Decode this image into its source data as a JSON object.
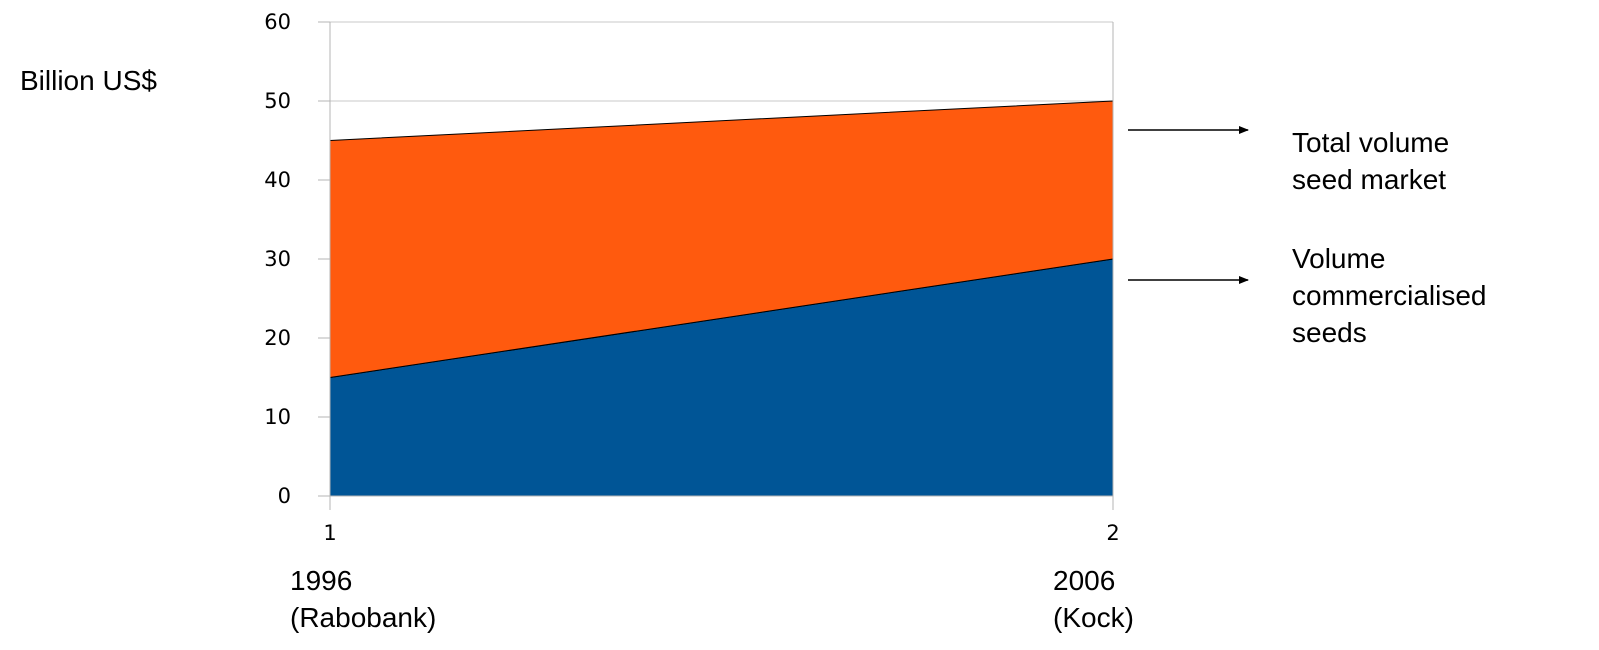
{
  "chart_data": {
    "type": "area",
    "stacked": true,
    "ylabel": "Billion US$",
    "ylim": [
      0,
      60
    ],
    "yticks": [
      0,
      10,
      20,
      30,
      40,
      50,
      60
    ],
    "x": [
      1,
      2
    ],
    "xticks": [
      "1",
      "2"
    ],
    "x_annotations": [
      {
        "year": "1996",
        "source": "(Rabobank)"
      },
      {
        "year": "2006",
        "source": "(Kock)"
      }
    ],
    "series": [
      {
        "values": [
          15,
          30
        ],
        "color": "#005596"
      },
      {
        "values": [
          30,
          20
        ],
        "color": "#ff5a0e"
      }
    ],
    "totals": [
      45,
      50
    ],
    "grid": true,
    "annotations": [
      {
        "lines": [
          "Total volume",
          "seed market"
        ],
        "points_to": "total"
      },
      {
        "lines": [
          "Volume",
          "commercialised",
          "seeds"
        ],
        "points_to": "commercialised"
      }
    ]
  }
}
